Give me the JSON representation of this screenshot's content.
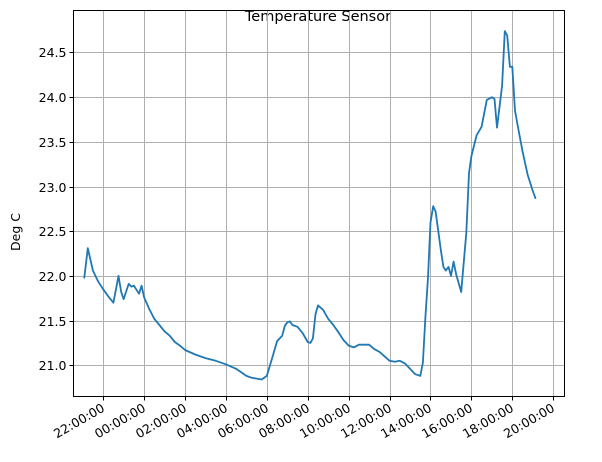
{
  "chart_data": {
    "type": "line",
    "title": "Temperature Sensor",
    "xlabel": "",
    "ylabel": "Deg C",
    "grid": true,
    "legend": "none",
    "x_type": "time",
    "x_unit": "hours",
    "series_color": "#1f77b4",
    "xticks": [
      {
        "value": 22,
        "label": "22:00:00"
      },
      {
        "value": 24,
        "label": "00:00:00"
      },
      {
        "value": 26,
        "label": "02:00:00"
      },
      {
        "value": 28,
        "label": "04:00:00"
      },
      {
        "value": 30,
        "label": "06:00:00"
      },
      {
        "value": 32,
        "label": "08:00:00"
      },
      {
        "value": 34,
        "label": "10:00:00"
      },
      {
        "value": 36,
        "label": "12:00:00"
      },
      {
        "value": 38,
        "label": "14:00:00"
      },
      {
        "value": 40,
        "label": "16:00:00"
      },
      {
        "value": 42,
        "label": "18:00:00"
      },
      {
        "value": 44,
        "label": "20:00:00"
      }
    ],
    "yticks": [
      {
        "value": 21.0,
        "label": "21.0"
      },
      {
        "value": 21.5,
        "label": "21.5"
      },
      {
        "value": 22.0,
        "label": "22.0"
      },
      {
        "value": 22.5,
        "label": "22.5"
      },
      {
        "value": 23.0,
        "label": "23.0"
      },
      {
        "value": 23.5,
        "label": "23.5"
      },
      {
        "value": 24.0,
        "label": "24.0"
      },
      {
        "value": 24.5,
        "label": "24.5"
      }
    ],
    "xlim": [
      20.55,
      44.55
    ],
    "ylim": [
      20.65,
      24.97
    ],
    "series": [
      {
        "x": [
          21.08,
          21.25,
          21.5,
          21.75,
          22.0,
          22.25,
          22.5,
          22.75,
          22.88,
          23.0,
          23.25,
          23.38,
          23.5,
          23.75,
          23.88,
          24.0,
          24.25,
          24.5,
          24.75,
          25.0,
          25.25,
          25.5,
          25.75,
          26.0,
          26.5,
          27.0,
          27.5,
          28.0,
          28.5,
          29.0,
          29.25,
          29.5,
          29.75,
          30.0,
          30.25,
          30.5,
          30.75,
          30.88,
          31.0,
          31.13,
          31.25,
          31.5,
          31.75,
          32.0,
          32.13,
          32.25,
          32.38,
          32.5,
          32.75,
          33.0,
          33.25,
          33.5,
          33.75,
          34.0,
          34.25,
          34.5,
          34.75,
          35.0,
          35.25,
          35.5,
          35.75,
          36.0,
          36.25,
          36.5,
          36.75,
          37.0,
          37.25,
          37.5,
          37.63,
          37.75,
          37.88,
          38.0,
          38.13,
          38.25,
          38.38,
          38.5,
          38.63,
          38.75,
          38.88,
          39.0,
          39.13,
          39.25,
          39.5,
          39.75,
          39.88,
          40.0,
          40.25,
          40.5,
          40.75,
          41.0,
          41.13,
          41.25,
          41.5,
          41.63,
          41.75,
          41.88,
          42.0,
          42.13,
          42.25,
          42.5,
          42.75,
          43.0,
          43.13
        ],
        "y": [
          21.98,
          22.31,
          22.06,
          21.94,
          21.85,
          21.77,
          21.7,
          22.0,
          21.82,
          21.74,
          21.91,
          21.88,
          21.89,
          21.8,
          21.89,
          21.76,
          21.63,
          21.52,
          21.45,
          21.38,
          21.33,
          21.26,
          21.22,
          21.17,
          21.12,
          21.08,
          21.05,
          21.01,
          20.96,
          20.88,
          20.86,
          20.85,
          20.84,
          20.88,
          21.07,
          21.27,
          21.33,
          21.44,
          21.48,
          21.49,
          21.45,
          21.43,
          21.36,
          21.26,
          21.25,
          21.3,
          21.57,
          21.67,
          21.62,
          21.52,
          21.45,
          21.37,
          21.28,
          21.22,
          21.2,
          21.23,
          21.23,
          21.23,
          21.18,
          21.15,
          21.1,
          21.05,
          21.04,
          21.05,
          21.02,
          20.96,
          20.9,
          20.88,
          21.03,
          21.54,
          21.98,
          22.6,
          22.78,
          22.72,
          22.5,
          22.3,
          22.1,
          22.06,
          22.1,
          22.0,
          22.16,
          22.02,
          21.82,
          22.48,
          23.15,
          23.34,
          23.57,
          23.67,
          23.97,
          24.0,
          23.98,
          23.66,
          24.13,
          24.74,
          24.69,
          24.34,
          24.34,
          23.85,
          23.7,
          23.39,
          23.13,
          22.95,
          22.87
        ]
      }
    ]
  }
}
